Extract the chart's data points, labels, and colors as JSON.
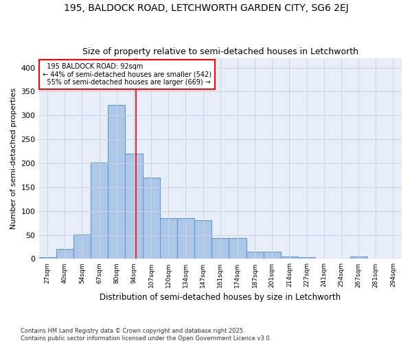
{
  "title1": "195, BALDOCK ROAD, LETCHWORTH GARDEN CITY, SG6 2EJ",
  "title2": "Size of property relative to semi-detached houses in Letchworth",
  "xlabel": "Distribution of semi-detached houses by size in Letchworth",
  "ylabel": "Number of semi-detached properties",
  "categories": [
    "27sqm",
    "40sqm",
    "54sqm",
    "67sqm",
    "80sqm",
    "94sqm",
    "107sqm",
    "120sqm",
    "134sqm",
    "147sqm",
    "161sqm",
    "174sqm",
    "187sqm",
    "201sqm",
    "214sqm",
    "227sqm",
    "241sqm",
    "254sqm",
    "267sqm",
    "281sqm",
    "294sqm"
  ],
  "values": [
    3,
    21,
    51,
    201,
    322,
    220,
    170,
    85,
    85,
    81,
    43,
    43,
    15,
    15,
    5,
    3,
    1,
    0,
    5,
    1,
    0
  ],
  "bar_color": "#aec6e8",
  "bar_edge_color": "#5b9bd5",
  "pct_smaller": 44,
  "count_smaller": 542,
  "pct_larger": 55,
  "count_larger": 669,
  "vline_x_index": 5.13,
  "ylim": [
    0,
    420
  ],
  "yticks": [
    0,
    50,
    100,
    150,
    200,
    250,
    300,
    350,
    400
  ],
  "grid_color": "#c8d4e8",
  "bg_color": "#e8eef8",
  "footer1": "Contains HM Land Registry data © Crown copyright and database right 2025.",
  "footer2": "Contains public sector information licensed under the Open Government Licence v3.0."
}
